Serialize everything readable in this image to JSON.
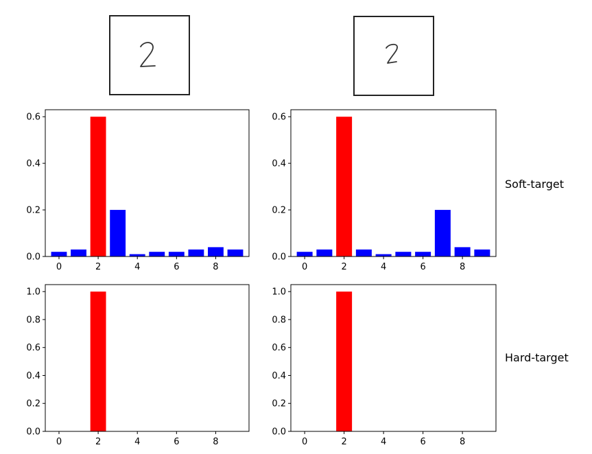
{
  "row_labels": {
    "soft": "Soft-target",
    "hard": "Hard-target"
  },
  "digits": [
    {
      "name": "left-digit",
      "text": "2"
    },
    {
      "name": "right-digit",
      "text": "2"
    }
  ],
  "colors": {
    "highlight": "#ff0000",
    "other": "#0000ff"
  },
  "chart_data": [
    {
      "type": "bar",
      "panel": "soft-left",
      "categories": [
        "0",
        "1",
        "2",
        "3",
        "4",
        "5",
        "6",
        "7",
        "8",
        "9"
      ],
      "values": [
        0.02,
        0.03,
        0.6,
        0.2,
        0.01,
        0.02,
        0.02,
        0.03,
        0.04,
        0.03
      ],
      "colors": [
        "#0000ff",
        "#0000ff",
        "#ff0000",
        "#0000ff",
        "#0000ff",
        "#0000ff",
        "#0000ff",
        "#0000ff",
        "#0000ff",
        "#0000ff"
      ],
      "xticks": [
        "0",
        "2",
        "4",
        "6",
        "8"
      ],
      "yticks": [
        "0.0",
        "0.2",
        "0.4",
        "0.6"
      ],
      "ylim": [
        0,
        0.63
      ],
      "xlim": [
        -0.7,
        9.7
      ]
    },
    {
      "type": "bar",
      "panel": "soft-right",
      "categories": [
        "0",
        "1",
        "2",
        "3",
        "4",
        "5",
        "6",
        "7",
        "8",
        "9"
      ],
      "values": [
        0.02,
        0.03,
        0.6,
        0.03,
        0.01,
        0.02,
        0.02,
        0.2,
        0.04,
        0.03
      ],
      "colors": [
        "#0000ff",
        "#0000ff",
        "#ff0000",
        "#0000ff",
        "#0000ff",
        "#0000ff",
        "#0000ff",
        "#0000ff",
        "#0000ff",
        "#0000ff"
      ],
      "xticks": [
        "0",
        "2",
        "4",
        "6",
        "8"
      ],
      "yticks": [
        "0.0",
        "0.2",
        "0.4",
        "0.6"
      ],
      "ylim": [
        0,
        0.63
      ],
      "xlim": [
        -0.7,
        9.7
      ]
    },
    {
      "type": "bar",
      "panel": "hard-left",
      "categories": [
        "0",
        "1",
        "2",
        "3",
        "4",
        "5",
        "6",
        "7",
        "8",
        "9"
      ],
      "values": [
        0,
        0,
        1.0,
        0,
        0,
        0,
        0,
        0,
        0,
        0
      ],
      "colors": [
        "#0000ff",
        "#0000ff",
        "#ff0000",
        "#0000ff",
        "#0000ff",
        "#0000ff",
        "#0000ff",
        "#0000ff",
        "#0000ff",
        "#0000ff"
      ],
      "xticks": [
        "0",
        "2",
        "4",
        "6",
        "8"
      ],
      "yticks": [
        "0.0",
        "0.2",
        "0.4",
        "0.6",
        "0.8",
        "1.0"
      ],
      "ylim": [
        0,
        1.05
      ],
      "xlim": [
        -0.7,
        9.7
      ]
    },
    {
      "type": "bar",
      "panel": "hard-right",
      "categories": [
        "0",
        "1",
        "2",
        "3",
        "4",
        "5",
        "6",
        "7",
        "8",
        "9"
      ],
      "values": [
        0,
        0,
        1.0,
        0,
        0,
        0,
        0,
        0,
        0,
        0
      ],
      "colors": [
        "#0000ff",
        "#0000ff",
        "#ff0000",
        "#0000ff",
        "#0000ff",
        "#0000ff",
        "#0000ff",
        "#0000ff",
        "#0000ff",
        "#0000ff"
      ],
      "xticks": [
        "0",
        "2",
        "4",
        "6",
        "8"
      ],
      "yticks": [
        "0.0",
        "0.2",
        "0.4",
        "0.6",
        "0.8",
        "1.0"
      ],
      "ylim": [
        0,
        1.05
      ],
      "xlim": [
        -0.7,
        9.7
      ]
    }
  ]
}
